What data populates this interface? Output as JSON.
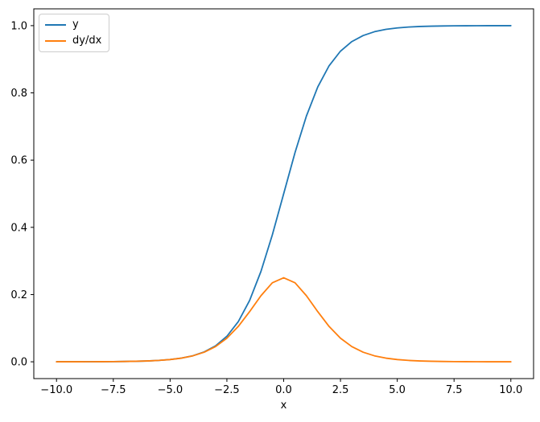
{
  "chart_data": {
    "type": "line",
    "title": "",
    "xlabel": "x",
    "ylabel": "",
    "grid": false,
    "xlim": [
      -11,
      11
    ],
    "ylim": [
      -0.05,
      1.05
    ],
    "xticks": {
      "values": [
        -10,
        -7.5,
        -5,
        -2.5,
        0,
        2.5,
        5,
        7.5,
        10
      ],
      "labels": [
        "−10.0",
        "−7.5",
        "−5.0",
        "−2.5",
        "0.0",
        "2.5",
        "5.0",
        "7.5",
        "10.0"
      ]
    },
    "yticks": {
      "values": [
        0,
        0.2,
        0.4,
        0.6,
        0.8,
        1.0
      ],
      "labels": [
        "0.0",
        "0.2",
        "0.4",
        "0.6",
        "0.8",
        "1.0"
      ]
    },
    "legend": {
      "position": "upper-left",
      "entries": [
        {
          "label": "y",
          "color": "#1f77b4"
        },
        {
          "label": "dy/dx",
          "color": "#ff7f0e"
        }
      ]
    },
    "x": [
      -10,
      -9.5,
      -9,
      -8.5,
      -8,
      -7.5,
      -7,
      -6.5,
      -6,
      -5.5,
      -5,
      -4.5,
      -4,
      -3.5,
      -3,
      -2.5,
      -2,
      -1.5,
      -1,
      -0.5,
      0,
      0.5,
      1,
      1.5,
      2,
      2.5,
      3,
      3.5,
      4,
      4.5,
      5,
      5.5,
      6,
      6.5,
      7,
      7.5,
      8,
      8.5,
      9,
      9.5,
      10
    ],
    "series": [
      {
        "name": "y",
        "color": "#1f77b4",
        "values": [
          4.5e-05,
          7.5e-05,
          0.000123,
          0.000203,
          0.000335,
          0.000553,
          0.000911,
          0.001503,
          0.002473,
          0.00407,
          0.006693,
          0.010987,
          0.017986,
          0.029312,
          0.047426,
          0.075858,
          0.119203,
          0.182426,
          0.268941,
          0.377541,
          0.5,
          0.622459,
          0.731059,
          0.817574,
          0.880797,
          0.924142,
          0.952574,
          0.970688,
          0.982014,
          0.989013,
          0.993307,
          0.99593,
          0.997527,
          0.998499,
          0.999089,
          0.999447,
          0.999665,
          0.999797,
          0.999877,
          0.999925,
          0.999955
        ]
      },
      {
        "name": "dy/dx",
        "color": "#ff7f0e",
        "values": [
          4.5e-05,
          7.5e-05,
          0.000123,
          0.000203,
          0.000335,
          0.000552,
          0.00091,
          0.0015,
          0.002467,
          0.004054,
          0.006648,
          0.010866,
          0.017663,
          0.028453,
          0.045177,
          0.070104,
          0.104994,
          0.149146,
          0.196612,
          0.235004,
          0.25,
          0.235004,
          0.196612,
          0.149146,
          0.104994,
          0.070104,
          0.045177,
          0.028453,
          0.017663,
          0.010866,
          0.006648,
          0.004054,
          0.002467,
          0.0015,
          0.00091,
          0.000552,
          0.000335,
          0.000203,
          0.000123,
          7.5e-05,
          4.5e-05
        ]
      }
    ]
  }
}
